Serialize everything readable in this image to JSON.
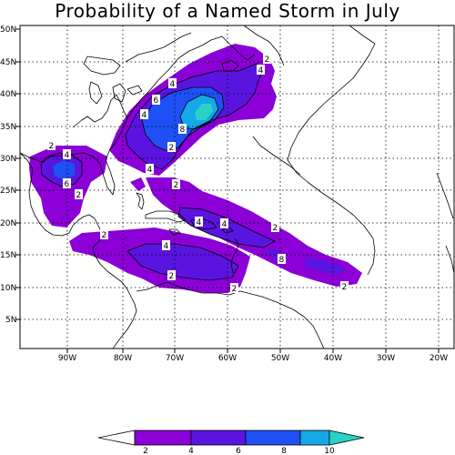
{
  "title": "Probability of a Named Storm in July",
  "axes": {
    "lon_labels": [
      "90W",
      "80W",
      "70W",
      "60W",
      "50W",
      "40W",
      "30W",
      "20W"
    ],
    "lat_labels": [
      "50N",
      "45N",
      "40N",
      "35N",
      "30N",
      "25N",
      "20N",
      "15N",
      "10N",
      "5N"
    ],
    "lon_range": [
      -98,
      -17
    ],
    "lat_range": [
      0,
      51
    ],
    "grid": "dotted"
  },
  "colors": {
    "level_2_4": "#8a00d6",
    "level_4_6": "#5a14e0",
    "level_6_8": "#1e50f5",
    "level_8_10": "#14a8e8",
    "level_10_plus": "#28d2c8"
  },
  "legend": {
    "ticks": [
      "2",
      "4",
      "6",
      "8",
      "10"
    ],
    "colors": [
      "#ffffff",
      "#8a00d6",
      "#5a14e0",
      "#1e50f5",
      "#14a8e8",
      "#28d2c8"
    ]
  },
  "contour_labels": [
    "2",
    "2",
    "2",
    "2",
    "2",
    "2",
    "2",
    "2",
    "2",
    "2",
    "4",
    "4",
    "4",
    "4",
    "4",
    "4",
    "4",
    "4",
    "6",
    "6",
    "8",
    "8"
  ]
}
